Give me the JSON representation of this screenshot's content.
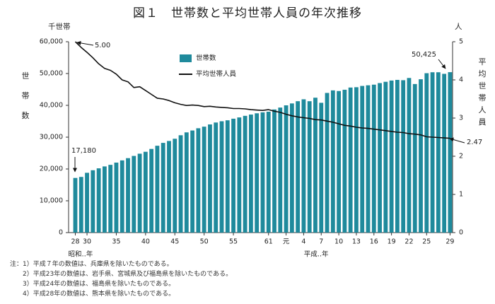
{
  "figure_title": "図１　世帯数と平均世帯人員の年次推移",
  "chart_data": {
    "type": "bar+line",
    "left_axis": {
      "unit": "千世帯",
      "title": [
        "世",
        "帯",
        "数"
      ],
      "ylim": [
        0,
        60000
      ],
      "ticks": [
        "0",
        "10,000",
        "20,000",
        "30,000",
        "40,000",
        "50,000",
        "60,000"
      ]
    },
    "right_axis": {
      "unit": "人",
      "title": [
        "平",
        "均",
        "世",
        "帯",
        "人",
        "員"
      ],
      "ylim": [
        0,
        5
      ],
      "ticks": [
        "0",
        "1",
        "2",
        "3",
        "4",
        "5"
      ]
    },
    "x_ticks": [
      {
        "index": 0,
        "label": "28"
      },
      {
        "index": 2,
        "label": "30"
      },
      {
        "index": 7,
        "label": "35"
      },
      {
        "index": 12,
        "label": "40"
      },
      {
        "index": 17,
        "label": "45"
      },
      {
        "index": 22,
        "label": "50"
      },
      {
        "index": 27,
        "label": "55"
      },
      {
        "index": 33,
        "label": "61"
      },
      {
        "index": 36,
        "label": "元"
      },
      {
        "index": 39,
        "label": "4"
      },
      {
        "index": 42,
        "label": "7"
      },
      {
        "index": 45,
        "label": "10"
      },
      {
        "index": 48,
        "label": "13"
      },
      {
        "index": 51,
        "label": "16"
      },
      {
        "index": 54,
        "label": "19"
      },
      {
        "index": 57,
        "label": "22"
      },
      {
        "index": 60,
        "label": "25"
      },
      {
        "index": 64,
        "label": "29"
      }
    ],
    "era_labels": [
      {
        "index": 0,
        "label": "昭和‥年"
      },
      {
        "index": 40,
        "label": "平成‥年"
      }
    ],
    "legend": [
      "世帯数",
      "平均世帯人員"
    ],
    "annotations": {
      "first_bar": "17,180",
      "last_bar": "50,425",
      "first_line": "5.00",
      "last_line": "2.47"
    },
    "series": [
      {
        "name": "世帯数",
        "type": "bar",
        "values": [
          17180,
          17500,
          18800,
          19600,
          20200,
          20800,
          21300,
          22000,
          22700,
          23400,
          24100,
          24800,
          25400,
          26300,
          27300,
          28200,
          28800,
          29500,
          30600,
          31500,
          32100,
          32800,
          33300,
          34000,
          34600,
          35000,
          35300,
          35800,
          36200,
          36700,
          37100,
          37500,
          37800,
          38000,
          38700,
          39300,
          40000,
          40600,
          41300,
          41900,
          41300,
          42400,
          40800,
          43900,
          44700,
          44500,
          44900,
          45600,
          45700,
          46100,
          46300,
          46500,
          47000,
          47400,
          47800,
          48000,
          47900,
          48600,
          46700,
          48200,
          50100,
          50400,
          50400,
          49900,
          50425
        ]
      },
      {
        "name": "平均世帯人員",
        "type": "line",
        "values": [
          5.0,
          4.85,
          4.72,
          4.58,
          4.42,
          4.3,
          4.25,
          4.15,
          4.0,
          3.95,
          3.8,
          3.82,
          3.72,
          3.62,
          3.52,
          3.5,
          3.46,
          3.4,
          3.36,
          3.33,
          3.34,
          3.33,
          3.3,
          3.31,
          3.29,
          3.28,
          3.27,
          3.25,
          3.25,
          3.24,
          3.22,
          3.21,
          3.2,
          3.22,
          3.18,
          3.15,
          3.1,
          3.06,
          3.03,
          3.01,
          2.99,
          2.96,
          2.95,
          2.92,
          2.89,
          2.85,
          2.81,
          2.79,
          2.76,
          2.74,
          2.73,
          2.71,
          2.69,
          2.67,
          2.65,
          2.63,
          2.62,
          2.59,
          2.58,
          2.56,
          2.51,
          2.5,
          2.49,
          2.48,
          2.47
        ]
      }
    ]
  },
  "notes": [
    "注：1）平成７年の数値は、兵庫県を除いたものである。",
    "　　2）平成23年の数値は、岩手県、宮城県及び福島県を除いたものである。",
    "　　3）平成24年の数値は、福島県を除いたものである。",
    "　　4）平成28年の数値は、熊本県を除いたものである。"
  ],
  "colors": {
    "bar": "#1f8a9c",
    "line": "#111111",
    "axis": "#333333"
  }
}
